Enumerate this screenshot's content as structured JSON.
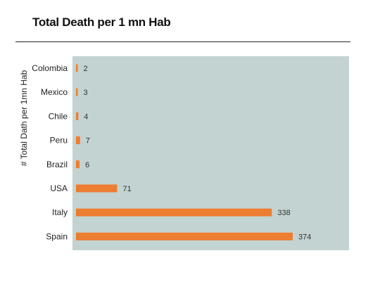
{
  "chart_data": {
    "type": "bar",
    "orientation": "horizontal",
    "title": "Total Death per 1 mn Hab",
    "ylabel": "# Total Dath per 1mn Hab",
    "categories": [
      "Colombia",
      "Mexico",
      "Chile",
      "Peru",
      "Brazil",
      "USA",
      "Italy",
      "Spain"
    ],
    "values": [
      2,
      3,
      4,
      7,
      6,
      71,
      338,
      374
    ],
    "xlim": [
      0,
      374
    ],
    "colors": {
      "bar": "#ed7d31",
      "plot_bg": "#c3d3d1"
    },
    "grid": false,
    "legend": "none"
  }
}
